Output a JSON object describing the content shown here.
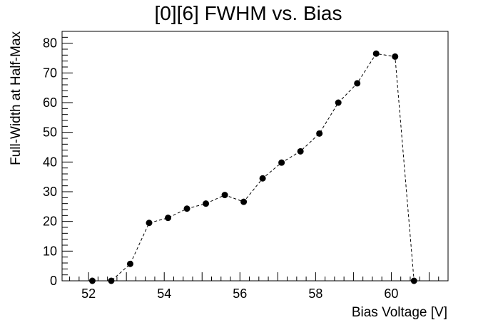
{
  "chart_data": {
    "type": "scatter",
    "title": "[0][6] FWHM vs. Bias",
    "xlabel": "Bias Voltage [V]",
    "ylabel": "Full-Width at Half-Max",
    "xlim": [
      51.3,
      61.5
    ],
    "ylim": [
      0,
      84
    ],
    "x_ticks": [
      52,
      54,
      56,
      58,
      60
    ],
    "y_ticks": [
      0,
      10,
      20,
      30,
      40,
      50,
      60,
      70,
      80
    ],
    "grid": false,
    "legend": "none",
    "series": [
      {
        "style": "markers with dashed connecting line",
        "color": "#000000",
        "x": [
          52.1,
          52.6,
          53.1,
          53.6,
          54.1,
          54.6,
          55.1,
          55.6,
          56.1,
          56.6,
          57.1,
          57.6,
          58.1,
          58.6,
          59.1,
          59.6,
          60.1,
          60.6
        ],
        "y": [
          0,
          0,
          5.7,
          19.5,
          21.2,
          24.3,
          26.0,
          28.9,
          26.6,
          34.5,
          39.8,
          43.6,
          49.6,
          60.0,
          66.5,
          76.5,
          75.5,
          0
        ]
      }
    ]
  }
}
